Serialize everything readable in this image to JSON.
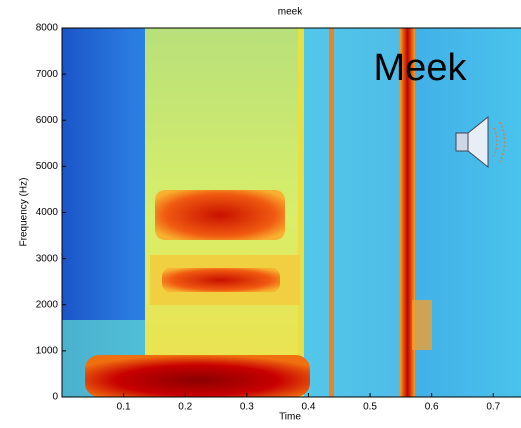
{
  "chart_data": {
    "type": "spectrogram",
    "title": "meek",
    "x_label": "Time",
    "y_label": "Frequency (Hz)",
    "annotation": "Meek",
    "xlim": [
      0,
      0.745
    ],
    "ylim": [
      0,
      8000
    ],
    "xticks": [
      0.1,
      0.2,
      0.3,
      0.4,
      0.5,
      0.6,
      0.7
    ],
    "yticks": [
      0,
      1000,
      2000,
      3000,
      4000,
      5000,
      6000,
      7000,
      8000
    ],
    "grid": false
  }
}
